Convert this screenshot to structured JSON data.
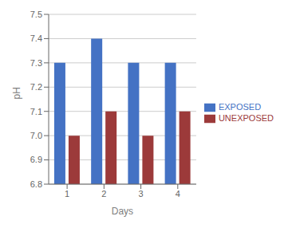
{
  "chart_data": {
    "type": "bar",
    "categories": [
      "1",
      "2",
      "3",
      "4"
    ],
    "series": [
      {
        "name": "EXPOSED",
        "color": "#4472C4",
        "values": [
          7.3,
          7.4,
          7.3,
          7.3
        ]
      },
      {
        "name": "UNEXPOSED",
        "color": "#9C3A3A",
        "values": [
          7.0,
          7.1,
          7.0,
          7.1
        ]
      }
    ],
    "xlabel": "Days",
    "ylabel": "pH",
    "ylim": [
      6.8,
      7.5
    ],
    "yticks": [
      6.8,
      6.9,
      {
        "value": 7,
        "label": "7.0"
      },
      7.1,
      7.2,
      7.3,
      7.4,
      7.5
    ],
    "grid": true,
    "legend": "right"
  }
}
